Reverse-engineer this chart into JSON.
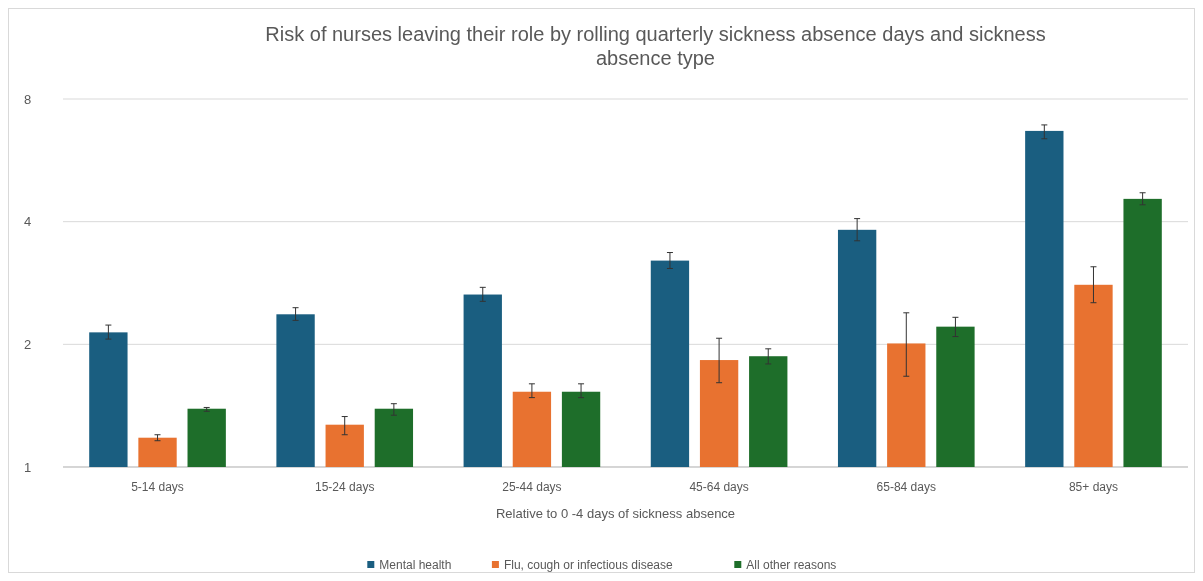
{
  "chart_data": {
    "type": "bar",
    "title": "Risk of nurses leaving their role by rolling quarterly sickness absence days and sickness absence type",
    "xlabel": "Relative to 0  -4 days of sickness absence",
    "categories": [
      "5-14 days",
      "15-24 days",
      "25-44 days",
      "45-64 days",
      "65-84 days",
      "85+ days"
    ],
    "series": [
      {
        "name": "Mental health",
        "color": "#1a5e80",
        "values": [
          2.14,
          2.37,
          2.65,
          3.21,
          3.82,
          6.68
        ],
        "errors": [
          [
            2.06,
            2.23
          ],
          [
            2.29,
            2.46
          ],
          [
            2.55,
            2.76
          ],
          [
            3.07,
            3.36
          ],
          [
            3.59,
            4.07
          ],
          [
            6.39,
            6.91
          ]
        ]
      },
      {
        "name": "Flu, cough or infectious disease",
        "color": "#e87230",
        "values": [
          1.18,
          1.27,
          1.53,
          1.83,
          2.01,
          2.8
        ],
        "errors": [
          [
            1.16,
            1.2
          ],
          [
            1.2,
            1.33
          ],
          [
            1.48,
            1.6
          ],
          [
            1.61,
            2.07
          ],
          [
            1.67,
            2.39
          ],
          [
            2.53,
            3.1
          ]
        ]
      },
      {
        "name": "All other reasons",
        "color": "#1e6e2a",
        "values": [
          1.39,
          1.39,
          1.53,
          1.87,
          2.21,
          4.55
        ],
        "errors": [
          [
            1.37,
            1.4
          ],
          [
            1.34,
            1.43
          ],
          [
            1.48,
            1.6
          ],
          [
            1.79,
            1.95
          ],
          [
            2.09,
            2.33
          ],
          [
            4.4,
            4.71
          ]
        ]
      }
    ],
    "ylim": [
      1,
      8
    ],
    "yticks": [
      1,
      2,
      4,
      8
    ],
    "log": "y",
    "grid": "y",
    "legend": "bottom"
  }
}
